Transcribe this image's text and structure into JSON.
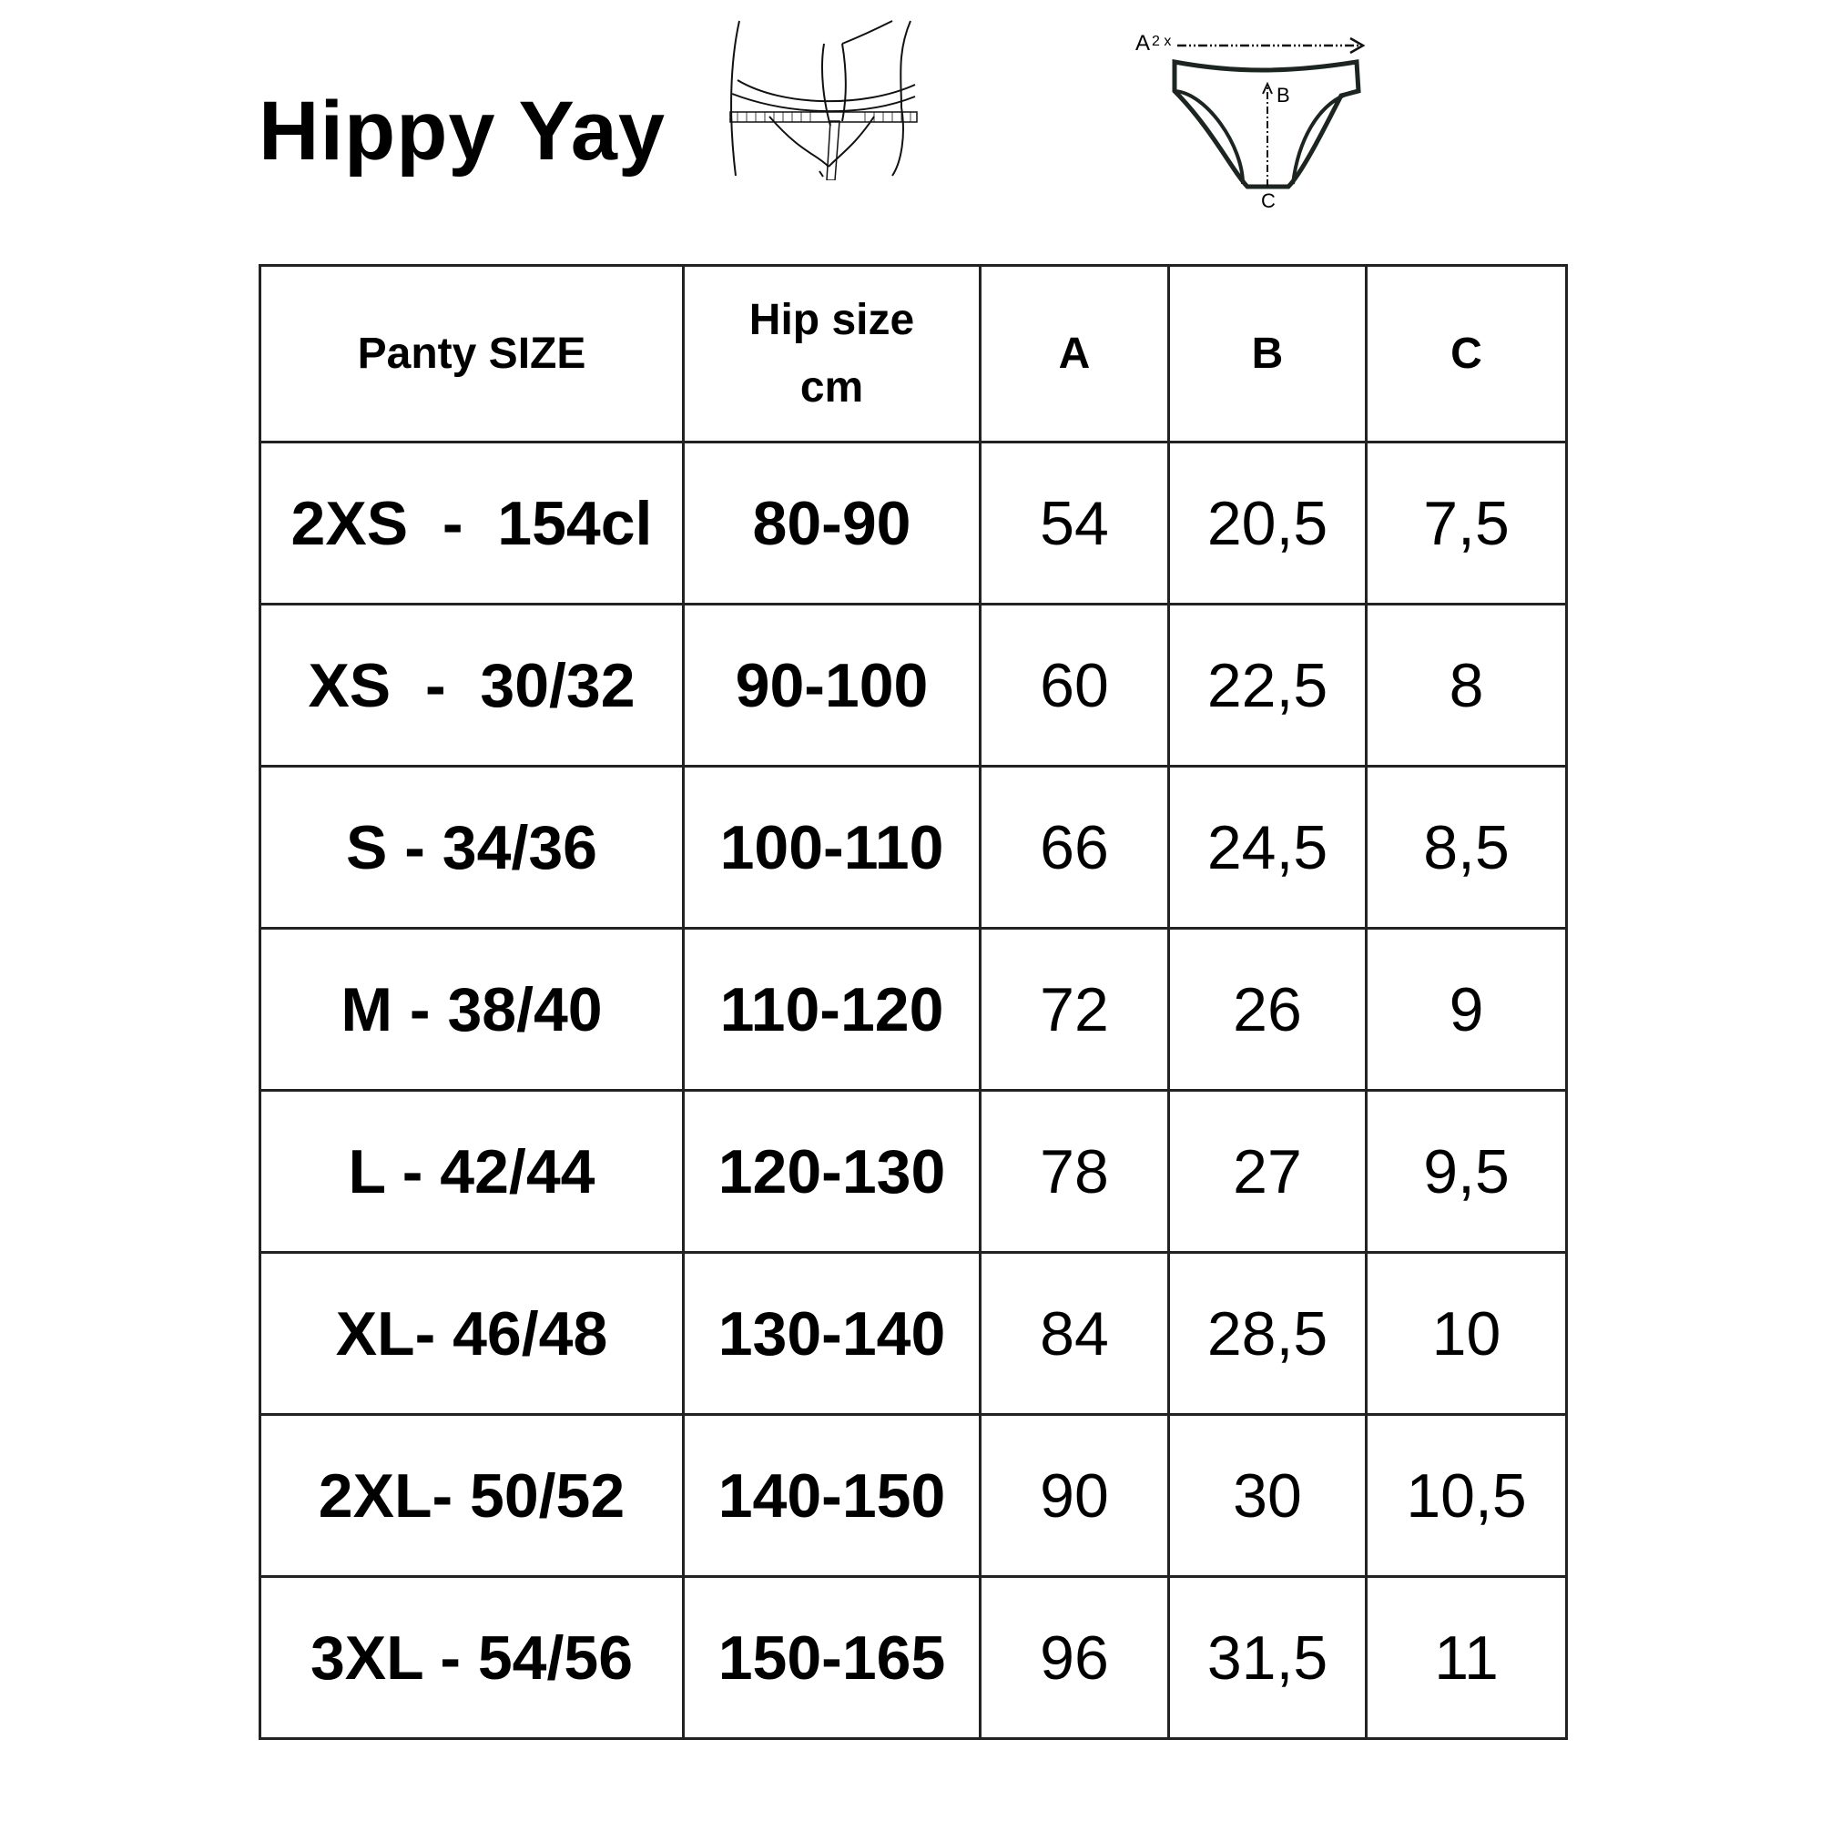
{
  "title": "Hippy Yay",
  "diagram": {
    "label_a": "A",
    "label_a_mult": "2 x",
    "label_b": "B",
    "label_c": "C"
  },
  "table": {
    "headers": [
      "Panty SIZE",
      "Hip size cm",
      "A",
      "B",
      "C"
    ],
    "header_hip_line1": "Hip size",
    "header_hip_line2": "cm",
    "rows": [
      [
        "2XS  -  154cl",
        "80-90",
        "54",
        "20,5",
        "7,5"
      ],
      [
        "XS  -  30/32",
        "90-100",
        "60",
        "22,5",
        "8"
      ],
      [
        "S - 34/36",
        "100-110",
        "66",
        "24,5",
        "8,5"
      ],
      [
        "M - 38/40",
        "110-120",
        "72",
        "26",
        "9"
      ],
      [
        "L - 42/44",
        "120-130",
        "78",
        "27",
        "9,5"
      ],
      [
        "XL- 46/48",
        "130-140",
        "84",
        "28,5",
        "10"
      ],
      [
        "2XL- 50/52",
        "140-150",
        "90",
        "30",
        "10,5"
      ],
      [
        "3XL - 54/56",
        "150-165",
        "96",
        "31,5",
        "11"
      ]
    ]
  }
}
